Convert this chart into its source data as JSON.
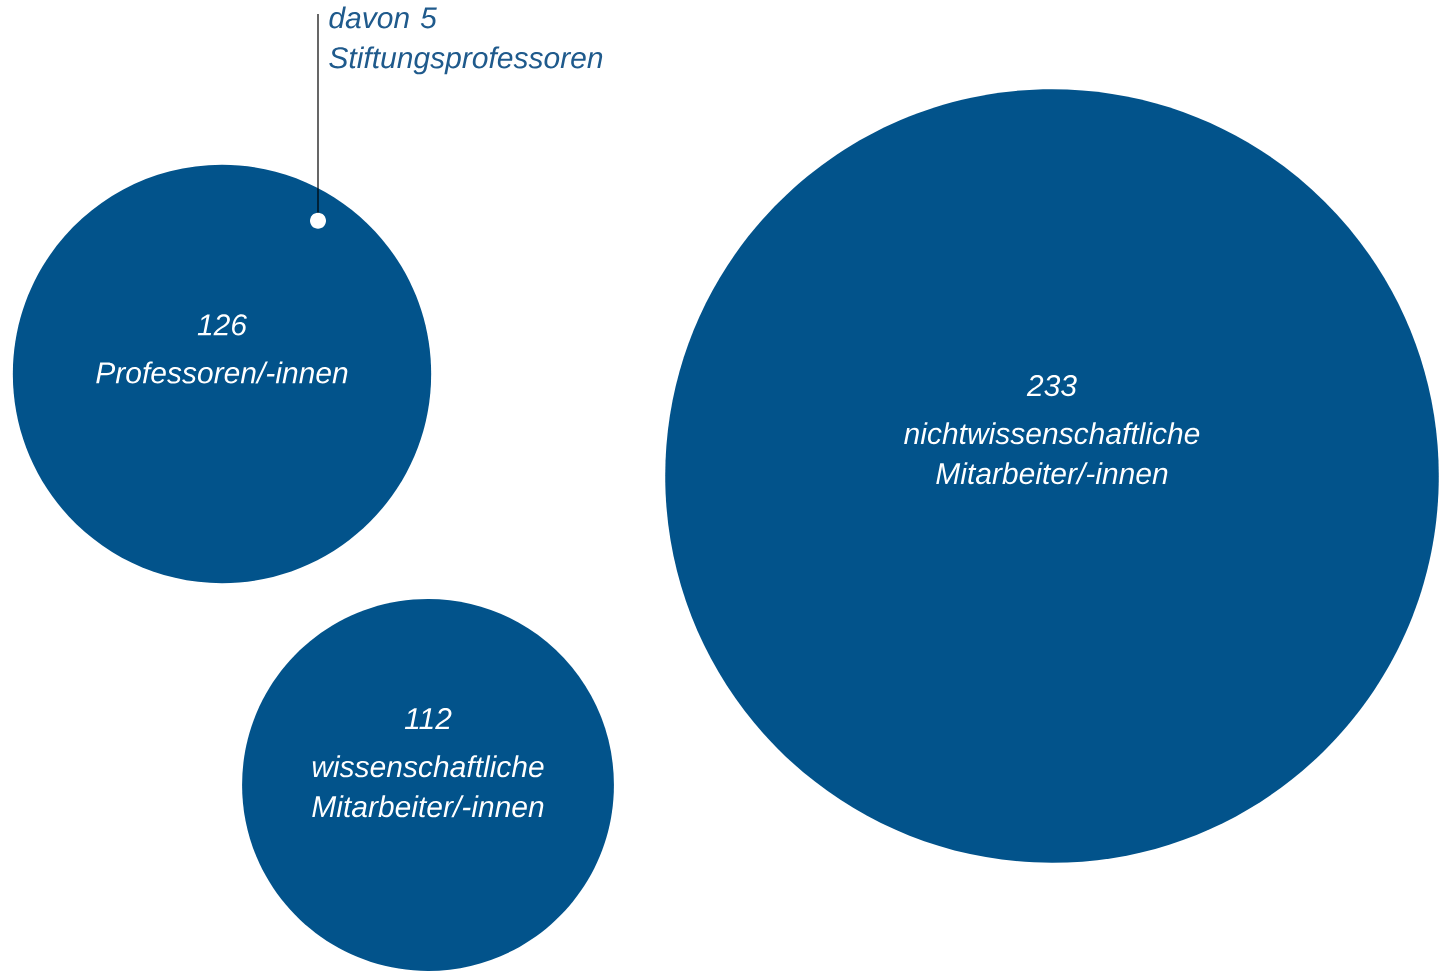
{
  "chart_data": {
    "type": "other",
    "categories": [
      "Professoren/-innen",
      "wissenschaftliche Mitarbeiter/-innen",
      "nichtwissenschaftliche Mitarbeiter/-innen"
    ],
    "values": [
      126,
      112,
      233
    ],
    "color": "#02538b",
    "data_labels": true,
    "annotations": [
      "davon 5 Stiftungsprofessoren"
    ]
  }
}
